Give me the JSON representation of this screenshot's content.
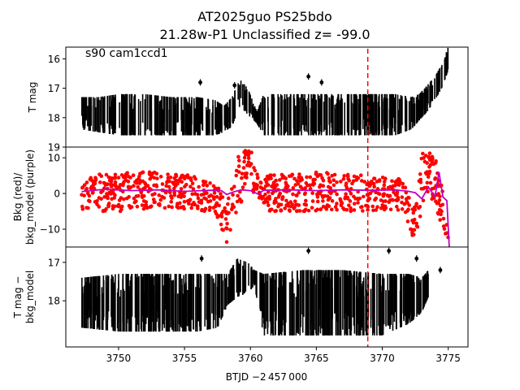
{
  "figure": {
    "title_line1": "AT2025guo  PS25bdo",
    "title_line2": "21.28w-P1 Unclassified z= -99.0",
    "xlabel": "BTJD −2 457 000"
  },
  "colors": {
    "data": "#000000",
    "bkg": "#ff0000",
    "bkg_model": "#bf00bf",
    "marker_line": "#ff0000"
  },
  "chart_data": [
    {
      "type": "scatter",
      "panel": "top",
      "ylabel": "T mag",
      "annotation": "s90 cam1ccd1",
      "xlim": [
        3746,
        3776.5
      ],
      "ylim": [
        19,
        15.6
      ],
      "y_inverted": true,
      "xticks": [],
      "yticks": [
        16,
        17,
        18,
        19
      ],
      "vertical_marker_x": 3768.9,
      "series": [
        {
          "style": "dense-errorbar",
          "band": [
            {
              "x": 3747.2,
              "lo": 17.3,
              "hi": 18.4
            },
            {
              "x": 3748.5,
              "lo": 17.3,
              "hi": 18.5
            },
            {
              "x": 3750.0,
              "lo": 17.2,
              "hi": 18.6
            },
            {
              "x": 3752.0,
              "lo": 17.2,
              "hi": 18.6
            },
            {
              "x": 3754.0,
              "lo": 17.3,
              "hi": 18.6
            },
            {
              "x": 3756.0,
              "lo": 17.3,
              "hi": 18.6
            },
            {
              "x": 3757.3,
              "lo": 17.4,
              "hi": 18.6
            },
            {
              "x": 3758.0,
              "lo": 17.6,
              "hi": 18.5
            },
            {
              "x": 3758.6,
              "lo": 17.3,
              "hi": 18.3
            },
            {
              "x": 3759.2,
              "lo": 16.7,
              "hi": 17.6
            },
            {
              "x": 3759.8,
              "lo": 17.0,
              "hi": 17.9
            },
            {
              "x": 3760.5,
              "lo": 17.8,
              "hi": 18.2
            },
            {
              "x": 3761.0,
              "lo": 17.2,
              "hi": 18.6
            },
            {
              "x": 3763.0,
              "lo": 17.2,
              "hi": 18.6
            },
            {
              "x": 3765.0,
              "lo": 17.2,
              "hi": 18.6
            },
            {
              "x": 3767.0,
              "lo": 17.2,
              "hi": 18.6
            },
            {
              "x": 3769.0,
              "lo": 17.2,
              "hi": 18.6
            },
            {
              "x": 3771.0,
              "lo": 17.2,
              "hi": 18.6
            },
            {
              "x": 3772.2,
              "lo": 17.3,
              "hi": 18.4
            },
            {
              "x": 3772.8,
              "lo": 17.2,
              "hi": 18.1
            },
            {
              "x": 3773.4,
              "lo": 16.9,
              "hi": 17.8
            },
            {
              "x": 3774.0,
              "lo": 16.6,
              "hi": 17.4
            },
            {
              "x": 3774.5,
              "lo": 16.2,
              "hi": 17.0
            },
            {
              "x": 3775.0,
              "lo": 15.6,
              "hi": 16.4
            }
          ],
          "outliers": [
            {
              "x": 3756.2,
              "y": 16.8
            },
            {
              "x": 3764.4,
              "y": 16.6
            },
            {
              "x": 3765.4,
              "y": 16.8
            },
            {
              "x": 3758.8,
              "y": 16.9
            }
          ]
        }
      ]
    },
    {
      "type": "line+scatter",
      "panel": "middle",
      "ylabel": "Bkg (red)/\nbkg_model (purple)",
      "xlim": [
        3746,
        3776.5
      ],
      "ylim": [
        -15,
        13
      ],
      "xticks": [],
      "yticks": [
        -10,
        0,
        10
      ],
      "vertical_marker_x": 3768.9,
      "series": [
        {
          "name": "Bkg",
          "style": "scatter-band",
          "band": [
            {
              "x": 3747.2,
              "lo": -5.0,
              "hi": 5.0
            },
            {
              "x": 3750.0,
              "lo": -5.0,
              "hi": 6.0
            },
            {
              "x": 3753.0,
              "lo": -5.0,
              "hi": 6.0
            },
            {
              "x": 3756.0,
              "lo": -5.0,
              "hi": 5.0
            },
            {
              "x": 3757.3,
              "lo": -5.0,
              "hi": 4.0
            },
            {
              "x": 3757.8,
              "lo": -10.0,
              "hi": 0.0
            },
            {
              "x": 3758.2,
              "lo": -14.0,
              "hi": -3.0
            },
            {
              "x": 3758.7,
              "lo": -14.0,
              "hi": 8.0
            },
            {
              "x": 3759.2,
              "lo": -6.0,
              "hi": 12.0
            },
            {
              "x": 3759.8,
              "lo": 5.0,
              "hi": 12.0
            },
            {
              "x": 3760.2,
              "lo": 0.0,
              "hi": 12.0
            },
            {
              "x": 3760.7,
              "lo": -2.0,
              "hi": 3.0
            },
            {
              "x": 3761.0,
              "lo": -5.0,
              "hi": 5.0
            },
            {
              "x": 3765.0,
              "lo": -5.0,
              "hi": 6.0
            },
            {
              "x": 3769.0,
              "lo": -5.0,
              "hi": 5.0
            },
            {
              "x": 3771.5,
              "lo": -5.0,
              "hi": 4.0
            },
            {
              "x": 3772.0,
              "lo": -10.0,
              "hi": 0.0
            },
            {
              "x": 3772.5,
              "lo": -14.0,
              "hi": -4.0
            },
            {
              "x": 3773.0,
              "lo": -4.0,
              "hi": 12.0
            },
            {
              "x": 3773.5,
              "lo": 0.0,
              "hi": 12.0
            },
            {
              "x": 3774.0,
              "lo": -3.0,
              "hi": 10.0
            },
            {
              "x": 3774.6,
              "lo": -10.0,
              "hi": 3.0
            },
            {
              "x": 3775.0,
              "lo": -14.0,
              "hi": -3.0
            }
          ]
        },
        {
          "name": "bkg_model",
          "style": "line",
          "points": [
            [
              3747.2,
              0.5
            ],
            [
              3749.0,
              1.2
            ],
            [
              3751.0,
              0.8
            ],
            [
              3753.0,
              1.0
            ],
            [
              3755.0,
              0.6
            ],
            [
              3757.0,
              0.9
            ],
            [
              3757.8,
              0.8
            ],
            [
              3758.2,
              -0.3
            ],
            [
              3758.7,
              0.4
            ],
            [
              3759.3,
              1.0
            ],
            [
              3760.0,
              0.8
            ],
            [
              3760.6,
              -0.2
            ],
            [
              3761.0,
              0.9
            ],
            [
              3763.0,
              1.0
            ],
            [
              3765.0,
              0.8
            ],
            [
              3767.0,
              1.0
            ],
            [
              3769.0,
              0.9
            ],
            [
              3771.0,
              1.0
            ],
            [
              3772.0,
              0.6
            ],
            [
              3772.5,
              0.2
            ],
            [
              3773.0,
              -1.5
            ],
            [
              3773.5,
              1.8
            ],
            [
              3774.0,
              -1.0
            ],
            [
              3774.3,
              6.0
            ],
            [
              3774.6,
              -1.0
            ],
            [
              3774.9,
              -2.0
            ],
            [
              3775.1,
              -16.5
            ]
          ]
        }
      ]
    },
    {
      "type": "scatter",
      "panel": "bottom",
      "ylabel": "T mag −\nbkg_model",
      "xlim": [
        3746,
        3776.5
      ],
      "ylim": [
        19.2,
        16.6
      ],
      "y_inverted": true,
      "xticks": [
        3750,
        3755,
        3760,
        3765,
        3770,
        3775
      ],
      "yticks": [
        17,
        18
      ],
      "vertical_marker_x": 3768.9,
      "series": [
        {
          "style": "dense-errorbar",
          "band": [
            {
              "x": 3747.2,
              "lo": 17.4,
              "hi": 18.7
            },
            {
              "x": 3750.0,
              "lo": 17.3,
              "hi": 18.8
            },
            {
              "x": 3753.0,
              "lo": 17.3,
              "hi": 18.8
            },
            {
              "x": 3756.0,
              "lo": 17.3,
              "hi": 18.8
            },
            {
              "x": 3757.5,
              "lo": 17.3,
              "hi": 18.7
            },
            {
              "x": 3758.3,
              "lo": 17.3,
              "hi": 18.1
            },
            {
              "x": 3759.0,
              "lo": 16.9,
              "hi": 17.9
            },
            {
              "x": 3759.8,
              "lo": 17.0,
              "hi": 17.8
            },
            {
              "x": 3760.3,
              "lo": 17.2,
              "hi": 17.6
            },
            {
              "x": 3761.0,
              "lo": 17.3,
              "hi": 18.9
            },
            {
              "x": 3764.0,
              "lo": 17.2,
              "hi": 18.9
            },
            {
              "x": 3767.0,
              "lo": 17.2,
              "hi": 18.9
            },
            {
              "x": 3770.0,
              "lo": 17.3,
              "hi": 18.9
            },
            {
              "x": 3772.0,
              "lo": 17.3,
              "hi": 18.6
            },
            {
              "x": 3773.0,
              "lo": 17.4,
              "hi": 18.3
            },
            {
              "x": 3773.5,
              "lo": 17.2,
              "hi": 17.9
            }
          ],
          "outliers": [
            {
              "x": 3756.3,
              "y": 16.9
            },
            {
              "x": 3764.4,
              "y": 16.7
            },
            {
              "x": 3770.5,
              "y": 16.7
            },
            {
              "x": 3772.6,
              "y": 16.9
            },
            {
              "x": 3774.4,
              "y": 17.2
            }
          ]
        }
      ]
    }
  ]
}
